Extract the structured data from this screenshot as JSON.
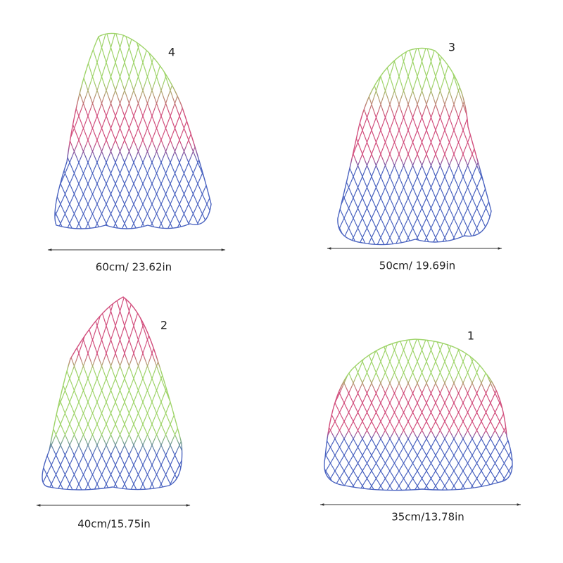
{
  "items": [
    {
      "number": "4",
      "size": "60cm/ 23.62in"
    },
    {
      "number": "3",
      "size": "50cm/ 19.69in"
    },
    {
      "number": "2",
      "size": "40cm/15.75in"
    },
    {
      "number": "1",
      "size": "35cm/13.78in"
    }
  ]
}
